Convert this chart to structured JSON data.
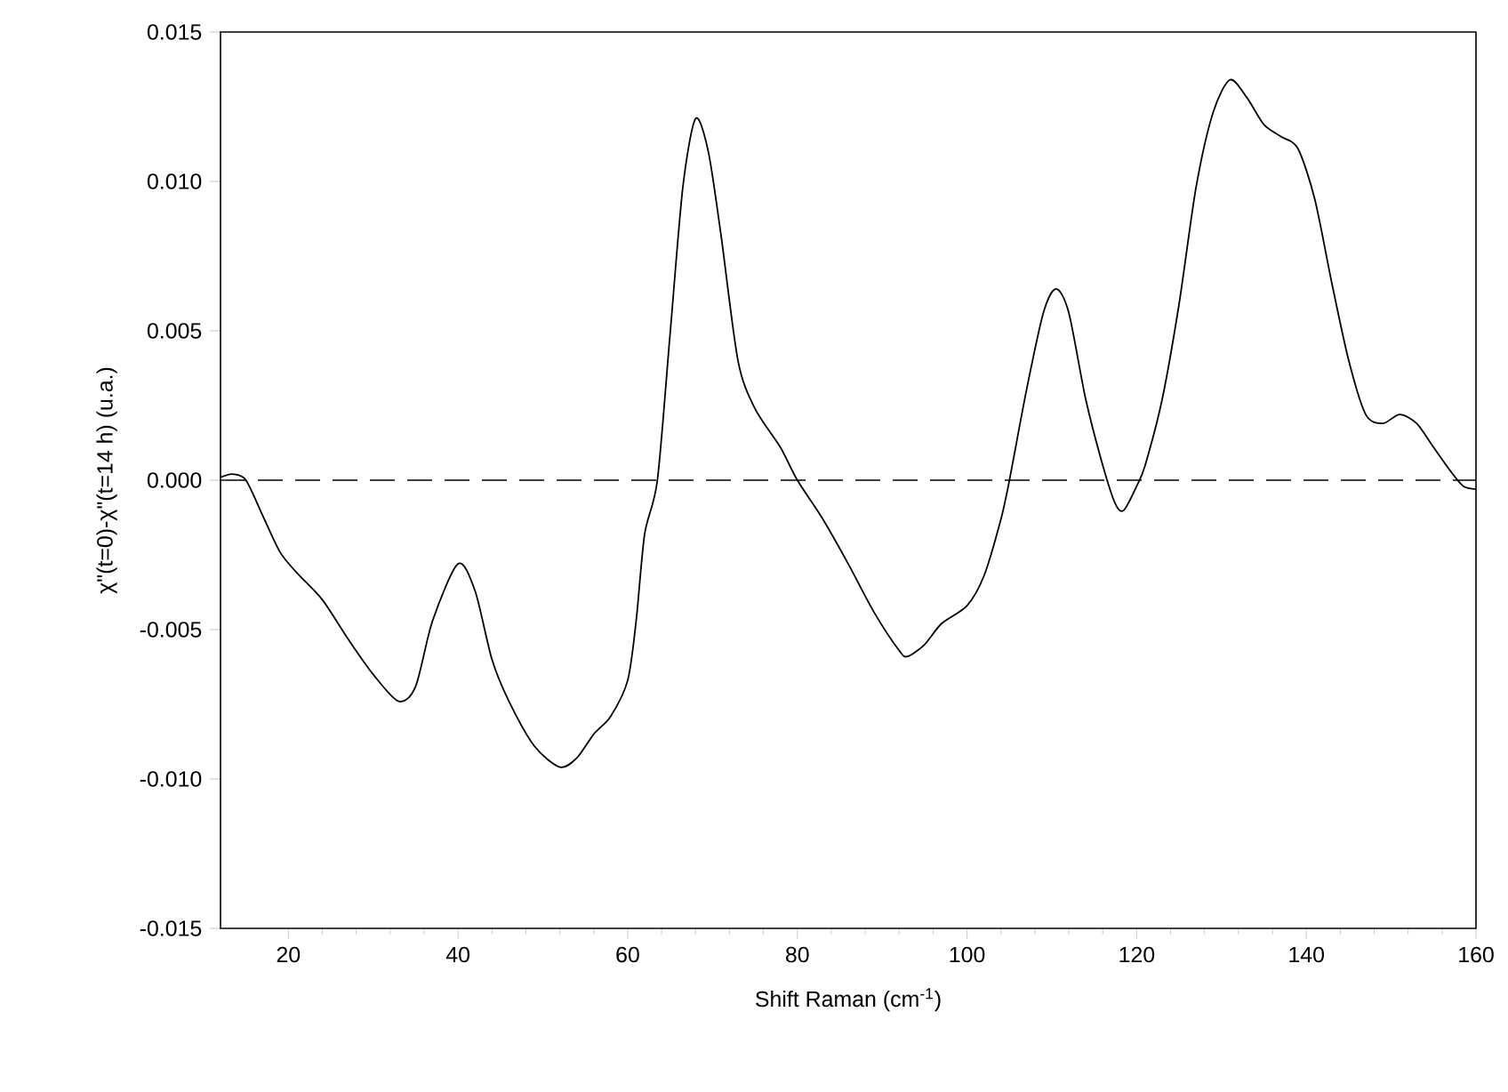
{
  "chart_data": {
    "type": "line",
    "xlabel": "Shift Raman (cm$^{-1}$)",
    "ylabel": "χ\"(t=0)-χ\"(t=14 h) (u.a.)",
    "x": [
      12,
      13.5,
      15,
      17,
      19,
      21,
      24,
      27,
      30,
      33,
      35,
      37,
      40,
      42,
      44,
      46,
      49,
      52,
      54,
      56,
      58,
      60,
      61,
      62,
      63.5,
      65,
      66.5,
      68,
      69.5,
      71,
      73,
      75,
      78,
      80,
      83,
      86,
      89,
      92,
      93,
      95,
      97,
      100,
      102,
      104,
      105,
      107,
      109,
      110.5,
      112,
      114,
      116,
      117.5,
      118.5,
      120,
      121,
      123,
      125,
      127,
      129,
      131,
      133,
      135,
      137,
      139,
      141,
      143,
      145,
      147,
      149,
      151,
      153,
      155,
      157,
      158.5,
      160
    ],
    "series": [
      {
        "color": "#000000",
        "values": [
          0.0001,
          0.0002,
          0.0,
          -0.0012,
          -0.0024,
          -0.0031,
          -0.004,
          -0.0053,
          -0.0065,
          -0.0074,
          -0.0069,
          -0.0047,
          -0.0028,
          -0.0037,
          -0.006,
          -0.0074,
          -0.0089,
          -0.0096,
          -0.0093,
          -0.0085,
          -0.0079,
          -0.0067,
          -0.0047,
          -0.0018,
          0.0,
          0.0049,
          0.0098,
          0.0121,
          0.011,
          0.0082,
          0.004,
          0.0024,
          0.0011,
          0.0,
          -0.0013,
          -0.0028,
          -0.0044,
          -0.0057,
          -0.0059,
          -0.0055,
          -0.0048,
          -0.0042,
          -0.0032,
          -0.0013,
          0.0,
          0.003,
          0.0056,
          0.0064,
          0.0056,
          0.0027,
          0.0005,
          -0.0008,
          -0.001,
          -0.0002,
          0.0005,
          0.0027,
          0.0059,
          0.0098,
          0.0123,
          0.0134,
          0.0128,
          0.0119,
          0.0115,
          0.0111,
          0.0094,
          0.0066,
          0.004,
          0.0022,
          0.0019,
          0.0022,
          0.0019,
          0.0011,
          0.0003,
          -0.0002,
          -0.0003
        ]
      }
    ],
    "xlim": [
      12,
      160
    ],
    "xticks": [
      20,
      40,
      60,
      80,
      100,
      120,
      140,
      160
    ],
    "ylim": [
      -0.015,
      0.015
    ],
    "yticks": [
      {
        "value": -0.015,
        "label": "-0.015"
      },
      {
        "value": -0.01,
        "label": "-0.010"
      },
      {
        "value": -0.005,
        "label": "-0.005"
      },
      {
        "value": 0,
        "label": "0.000"
      },
      {
        "value": 0.005,
        "label": "0.005"
      },
      {
        "value": 0.01,
        "label": "0.010"
      },
      {
        "value": 0.015,
        "label": "0.015"
      }
    ],
    "ref_lines": [
      {
        "axis": "y",
        "value": 0,
        "color": "#000000",
        "line_style": "dashed"
      }
    ],
    "marker": "none",
    "line_style": "solid"
  }
}
